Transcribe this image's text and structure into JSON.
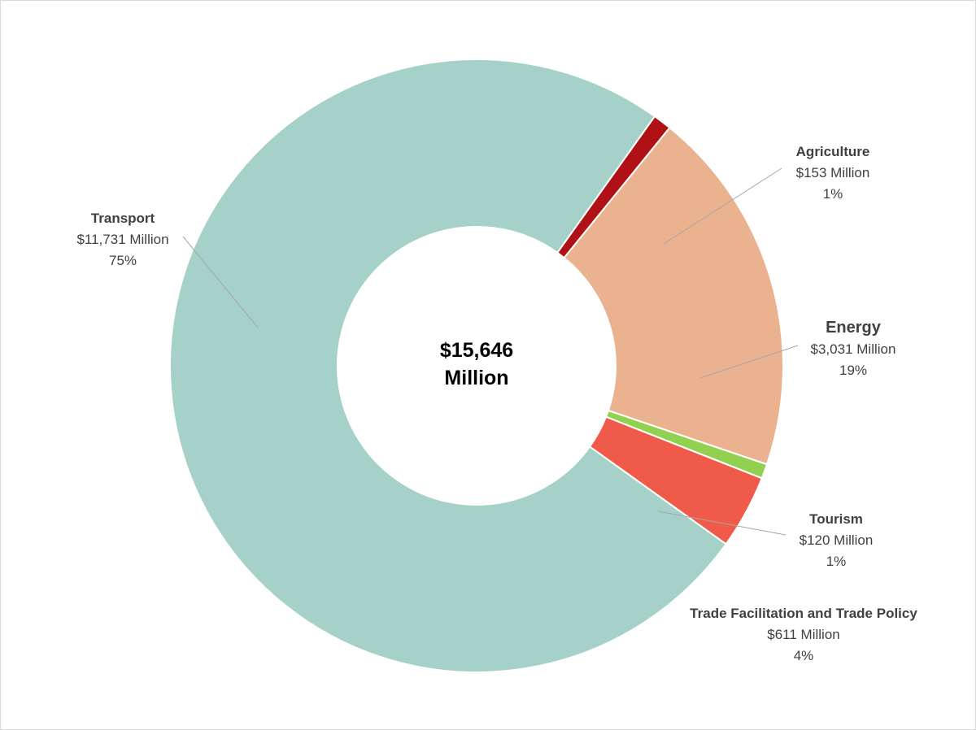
{
  "chart_data": {
    "type": "pie",
    "variant": "donut",
    "center_label": [
      "$15,646",
      "Million"
    ],
    "slices": [
      {
        "name": "Agriculture",
        "amount_label": "$153 Million",
        "percent_label": "1%",
        "value": 153,
        "color": "#b01116"
      },
      {
        "name": "Energy",
        "amount_label": "$3,031 Million",
        "percent_label": "19%",
        "value": 3031,
        "color": "#eab28f"
      },
      {
        "name": "Tourism",
        "amount_label": "$120 Million",
        "percent_label": "1%",
        "value": 120,
        "color": "#92d050"
      },
      {
        "name": "Trade Facilitation and Trade Policy",
        "amount_label": "$611 Million",
        "percent_label": "4%",
        "value": 611,
        "color": "#f05a4a"
      },
      {
        "name": "Transport",
        "amount_label": "$11,731 Million",
        "percent_label": "75%",
        "value": 11731,
        "color": "#a5d1c9"
      }
    ]
  }
}
